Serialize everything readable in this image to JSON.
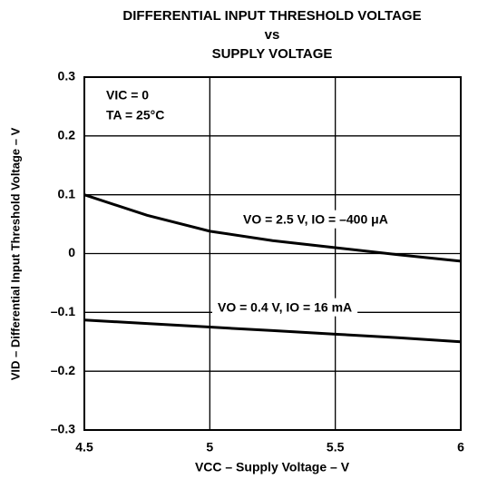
{
  "chart_data": {
    "type": "line",
    "title": [
      "DIFFERENTIAL INPUT THRESHOLD VOLTAGE",
      "vs",
      "SUPPLY VOLTAGE"
    ],
    "xlabel": "VCC – Supply Voltage – V",
    "ylabel": "VID – Differential Input Threshold Voltage – V",
    "annotations": [
      "VIC = 0",
      "TA = 25°C"
    ],
    "x": [
      4.5,
      4.75,
      5,
      5.25,
      5.5,
      5.75,
      6
    ],
    "series": [
      {
        "name": "VO = 2.5 V, IO = –400 μA",
        "color": "#000000",
        "values": [
          0.1,
          0.065,
          0.038,
          0.022,
          0.01,
          -0.002,
          -0.013
        ]
      },
      {
        "name": "VO = 0.4 V, IO = 16 mA",
        "color": "#000000",
        "values": [
          -0.113,
          -0.119,
          -0.125,
          -0.131,
          -0.137,
          -0.143,
          -0.15
        ]
      }
    ],
    "xlim": [
      4.5,
      6
    ],
    "xticks": [
      4.5,
      5,
      5.5,
      6
    ],
    "ylim": [
      -0.3,
      0.3
    ],
    "yticks": [
      {
        "value": -0.3,
        "label": "–0.3"
      },
      {
        "value": -0.2,
        "label": "–0.2"
      },
      {
        "value": -0.1,
        "label": "–0.1"
      },
      0,
      0.1,
      0.2,
      0.3
    ],
    "grid": true
  }
}
